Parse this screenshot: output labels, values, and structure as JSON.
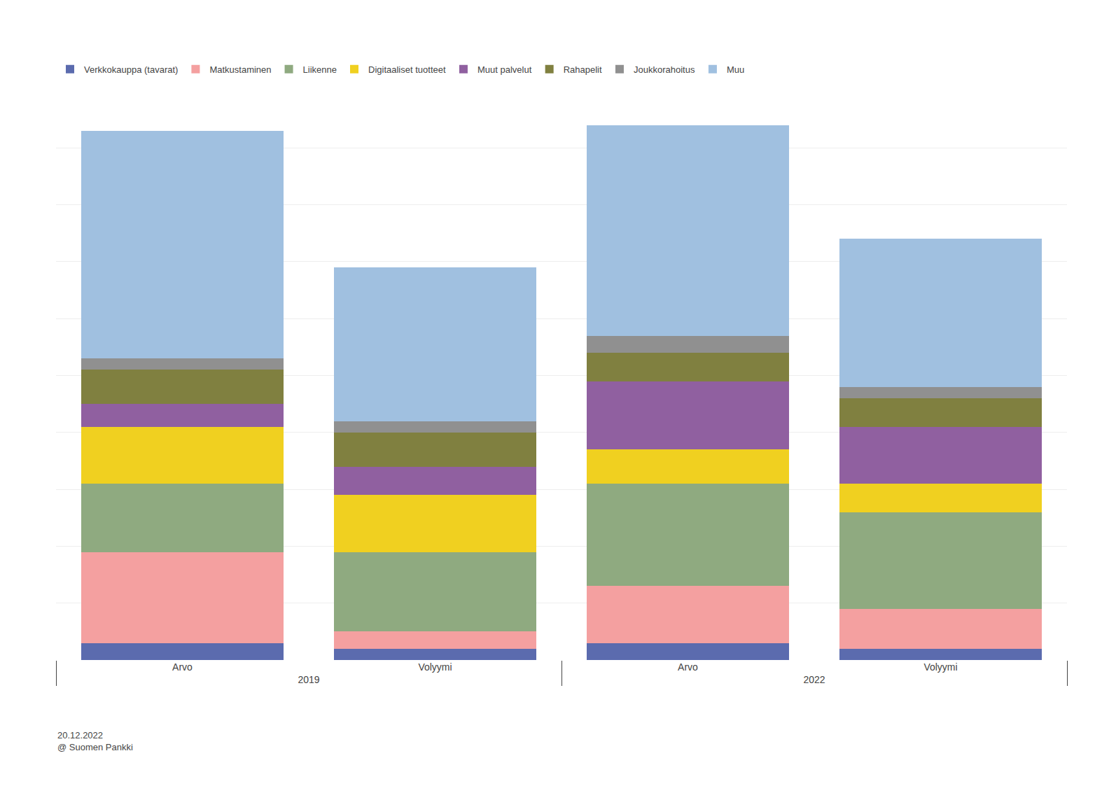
{
  "chart_data": {
    "type": "bar",
    "stacked": true,
    "categories": [
      "Arvo",
      "Volyymi",
      "Arvo",
      "Volyymi"
    ],
    "category_groups": [
      "2019",
      "2019",
      "2022",
      "2022"
    ],
    "series": [
      {
        "name": "Verkkokauppa (tavarat)",
        "color": "#5b6bae",
        "values": [
          3,
          2,
          3,
          2
        ]
      },
      {
        "name": "Matkustaminen",
        "color": "#f4a0a0",
        "values": [
          16,
          3,
          10,
          7
        ]
      },
      {
        "name": "Liikenne",
        "color": "#8faa80",
        "values": [
          12,
          14,
          18,
          17
        ]
      },
      {
        "name": "Digitaaliset tuotteet",
        "color": "#f0d020",
        "values": [
          10,
          10,
          6,
          5
        ]
      },
      {
        "name": "Muut palvelut",
        "color": "#9060a0",
        "values": [
          4,
          5,
          12,
          10
        ]
      },
      {
        "name": "Rahapelit",
        "color": "#808040",
        "values": [
          6,
          6,
          5,
          5
        ]
      },
      {
        "name": "Joukkorahoitus",
        "color": "#909090",
        "values": [
          2,
          2,
          3,
          2
        ]
      },
      {
        "name": "Muu",
        "color": "#a0c0e0",
        "values": [
          40,
          27,
          37,
          26
        ]
      }
    ],
    "ylim": [
      0,
      100
    ],
    "yticks": [
      0,
      10,
      20,
      30,
      40,
      50,
      60,
      70,
      80,
      90,
      100
    ],
    "grid": true,
    "tick_labels": "x",
    "legend": "top",
    "annotations": [
      "20.12.2022\n@ Suomen Pankki"
    ]
  }
}
